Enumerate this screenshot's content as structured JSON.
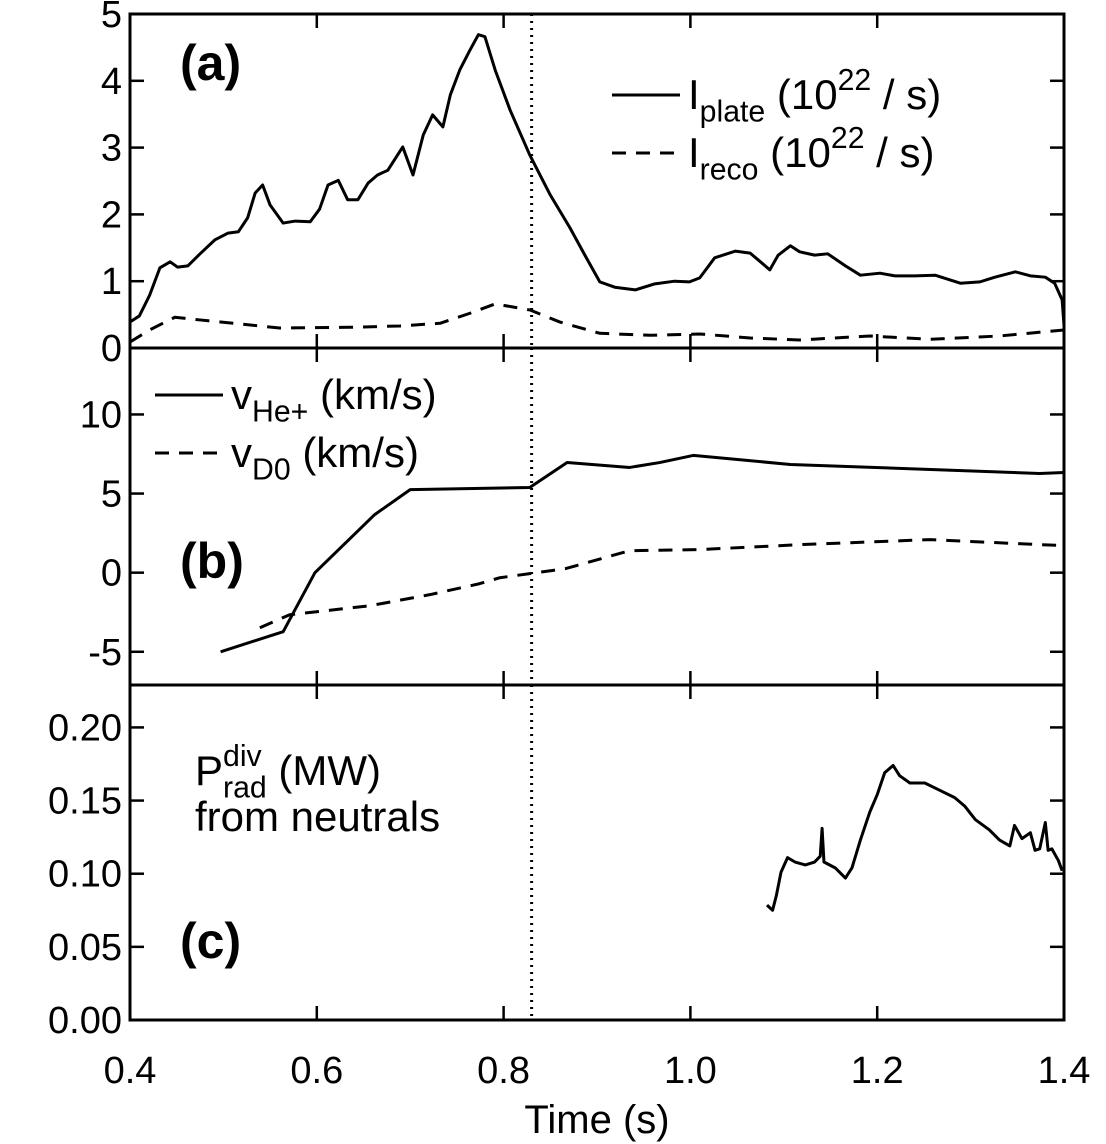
{
  "chart_data": [
    {
      "type": "line",
      "panel_label": "(a)",
      "legend": "upper right",
      "vline": 0.83,
      "xlim": [
        0.4,
        1.4
      ],
      "xticks": [
        0.4,
        0.6,
        0.8,
        1,
        1.2,
        1.4
      ],
      "ylim": [
        0,
        5
      ],
      "yticks": [
        0,
        1,
        2,
        3,
        4,
        5
      ],
      "series": [
        {
          "name": [
            {
              "text": "I"
            },
            {
              "text": "plate",
              "shift": "sub"
            },
            {
              "text": " (10"
            },
            {
              "text": "22",
              "shift": "super"
            },
            {
              "text": " / s)"
            }
          ],
          "color": "#000000",
          "linestyle": "solid",
          "x": [
            0.4,
            0.41,
            0.421,
            0.432,
            0.443,
            0.451,
            0.462,
            0.475,
            0.491,
            0.505,
            0.516,
            0.526,
            0.534,
            0.542,
            0.55,
            0.564,
            0.577,
            0.593,
            0.603,
            0.612,
            0.623,
            0.633,
            0.644,
            0.655,
            0.665,
            0.676,
            0.692,
            0.703,
            0.714,
            0.724,
            0.735,
            0.743,
            0.753,
            0.764,
            0.773,
            0.78,
            0.791,
            0.807,
            0.828,
            0.85,
            0.871,
            0.887,
            0.903,
            0.919,
            0.941,
            0.962,
            0.983,
            0.999,
            1.01,
            1.026,
            1.048,
            1.064,
            1.075,
            1.085,
            1.094,
            1.107,
            1.117,
            1.133,
            1.147,
            1.166,
            1.182,
            1.203,
            1.219,
            1.24,
            1.262,
            1.289,
            1.31,
            1.326,
            1.348,
            1.364,
            1.38,
            1.39,
            1.398,
            1.4
          ],
          "values": [
            0.39,
            0.48,
            0.79,
            1.2,
            1.29,
            1.21,
            1.23,
            1.41,
            1.62,
            1.72,
            1.74,
            1.95,
            2.32,
            2.44,
            2.14,
            1.87,
            1.9,
            1.89,
            2.08,
            2.44,
            2.51,
            2.22,
            2.22,
            2.47,
            2.59,
            2.66,
            3.01,
            2.59,
            3.19,
            3.49,
            3.31,
            3.79,
            4.16,
            4.46,
            4.69,
            4.66,
            4.16,
            3.56,
            2.89,
            2.29,
            1.8,
            1.39,
            0.99,
            0.91,
            0.87,
            0.96,
            1.0,
            0.99,
            1.05,
            1.35,
            1.45,
            1.42,
            1.29,
            1.17,
            1.39,
            1.53,
            1.44,
            1.39,
            1.41,
            1.23,
            1.09,
            1.12,
            1.08,
            1.08,
            1.09,
            0.97,
            0.99,
            1.06,
            1.14,
            1.08,
            1.06,
            0.97,
            0.72,
            0.34
          ]
        },
        {
          "name": [
            {
              "text": "I"
            },
            {
              "text": "reco",
              "shift": "sub"
            },
            {
              "text": " (10"
            },
            {
              "text": "22",
              "shift": "super"
            },
            {
              "text": " / s)"
            }
          ],
          "color": "#000000",
          "linestyle": "dashed",
          "x": [
            0.4,
            0.421,
            0.448,
            0.475,
            0.518,
            0.56,
            0.636,
            0.689,
            0.732,
            0.764,
            0.791,
            0.828,
            0.86,
            0.903,
            0.957,
            1.01,
            1.064,
            1.117,
            1.192,
            1.257,
            1.331,
            1.4
          ],
          "values": [
            0.09,
            0.27,
            0.46,
            0.42,
            0.36,
            0.3,
            0.31,
            0.33,
            0.37,
            0.52,
            0.66,
            0.57,
            0.39,
            0.22,
            0.19,
            0.21,
            0.15,
            0.12,
            0.18,
            0.13,
            0.18,
            0.27
          ]
        }
      ]
    },
    {
      "type": "line",
      "panel_label": "(b)",
      "legend": "upper left",
      "vline": 0.83,
      "xlim": [
        0.4,
        1.4
      ],
      "xticks": [
        0.4,
        0.6,
        0.8,
        1,
        1.2,
        1.4
      ],
      "ylim": [
        -7.1,
        14.2
      ],
      "yticks": [
        -5,
        0,
        5,
        10
      ],
      "series": [
        {
          "name": [
            {
              "text": "v"
            },
            {
              "text": "He+",
              "shift": "sub"
            },
            {
              "text": " (km/s)"
            }
          ],
          "color": "#000000",
          "linestyle": "solid",
          "x": [
            0.497,
            0.564,
            0.598,
            0.662,
            0.7,
            0.828,
            0.868,
            0.935,
            0.967,
            1.003,
            1.107,
            1.374,
            1.4
          ],
          "values": [
            -5.0,
            -3.73,
            0,
            3.67,
            5.25,
            5.38,
            6.96,
            6.65,
            6.96,
            7.41,
            6.84,
            6.27,
            6.33
          ]
        },
        {
          "name": [
            {
              "text": "v"
            },
            {
              "text": "D0",
              "shift": "sub"
            },
            {
              "text": " (km/s)"
            }
          ],
          "color": "#000000",
          "linestyle": "dashed",
          "x": [
            0.539,
            0.571,
            0.657,
            0.721,
            0.774,
            0.796,
            0.828,
            0.866,
            0.935,
            1.01,
            1.117,
            1.257,
            1.374,
            1.4
          ],
          "values": [
            -3.48,
            -2.66,
            -2.09,
            -1.39,
            -0.7,
            -0.32,
            -0.06,
            0.25,
            1.39,
            1.46,
            1.77,
            2.09,
            1.77,
            1.71
          ]
        }
      ]
    },
    {
      "type": "line",
      "panel_label": "(c)",
      "vline": 0.83,
      "annotation": [
        [
          {
            "text": "P"
          },
          {
            "text": "div",
            "shift": "super"
          },
          {
            "text": "rad",
            "shift": "sub"
          },
          {
            "text": " (MW)"
          }
        ],
        [
          {
            "text": "from neutrals"
          }
        ]
      ],
      "xlabel": "Time (s)",
      "xlim": [
        0.4,
        1.4
      ],
      "xticks": [
        0.4,
        0.6,
        0.8,
        {
          "value": 1,
          "label": "1.0"
        },
        1.2,
        1.4
      ],
      "ylim": [
        0,
        0.229
      ],
      "yticks": [
        {
          "value": 0,
          "label": "0.00"
        },
        {
          "value": 0.05,
          "label": "0.05"
        },
        {
          "value": 0.1,
          "label": "0.10"
        },
        {
          "value": 0.15,
          "label": "0.15"
        },
        {
          "value": 0.2,
          "label": "0.20"
        }
      ],
      "series": [
        {
          "color": "#000000",
          "linestyle": "solid",
          "x": [
            1.082,
            1.088,
            1.092,
            1.097,
            1.104,
            1.112,
            1.123,
            1.133,
            1.139,
            1.141,
            1.143,
            1.155,
            1.166,
            1.173,
            1.182,
            1.192,
            1.2,
            1.208,
            1.217,
            1.224,
            1.235,
            1.251,
            1.267,
            1.283,
            1.294,
            1.305,
            1.32,
            1.331,
            1.342,
            1.347,
            1.355,
            1.364,
            1.369,
            1.374,
            1.38,
            1.383,
            1.387,
            1.394,
            1.398
          ],
          "values": [
            0.0785,
            0.075,
            0.085,
            0.101,
            0.111,
            0.108,
            0.106,
            0.108,
            0.112,
            0.131,
            0.108,
            0.104,
            0.097,
            0.104,
            0.123,
            0.142,
            0.154,
            0.169,
            0.174,
            0.167,
            0.162,
            0.162,
            0.157,
            0.152,
            0.146,
            0.137,
            0.13,
            0.123,
            0.119,
            0.133,
            0.124,
            0.128,
            0.116,
            0.117,
            0.135,
            0.116,
            0.117,
            0.109,
            0.102
          ]
        }
      ]
    }
  ]
}
